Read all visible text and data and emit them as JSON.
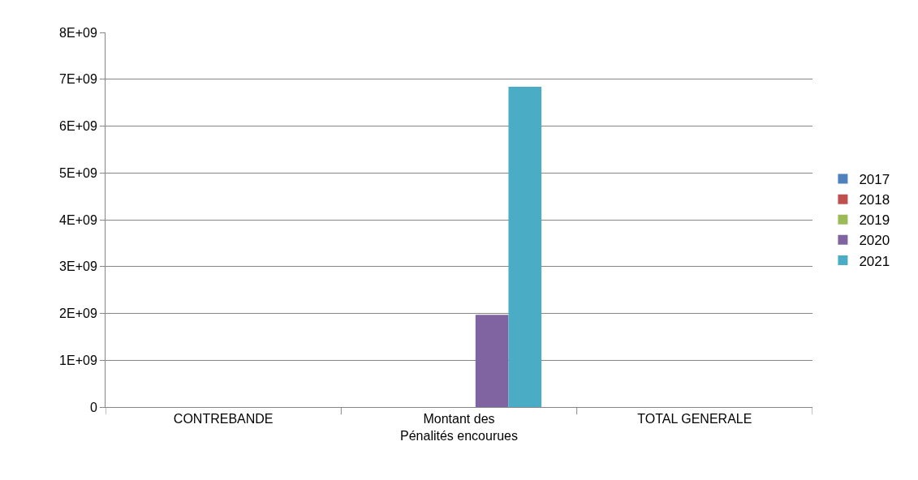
{
  "chart_data": {
    "type": "bar",
    "categories": [
      "CONTREBANDE",
      "Montant des Pénalités encourues",
      "TOTAL GENERALE"
    ],
    "series": [
      {
        "name": "2017",
        "color": "#4f81bd",
        "values": [
          0,
          0,
          0
        ]
      },
      {
        "name": "2018",
        "color": "#c0504d",
        "values": [
          0,
          0,
          0
        ]
      },
      {
        "name": "2019",
        "color": "#9bbb59",
        "values": [
          0,
          0,
          0
        ]
      },
      {
        "name": "2020",
        "color": "#8064a2",
        "values": [
          0,
          1970000000,
          0
        ]
      },
      {
        "name": "2021",
        "color": "#4bacc6",
        "values": [
          0,
          6840000000,
          0
        ]
      }
    ],
    "ylim": [
      0,
      8000000000
    ],
    "yticks": [
      0,
      {
        "value": 1000000000,
        "label": "1E+09"
      },
      {
        "value": 2000000000,
        "label": "2E+09"
      },
      {
        "value": 3000000000,
        "label": "3E+09"
      },
      {
        "value": 4000000000,
        "label": "4E+09"
      },
      {
        "value": 5000000000,
        "label": "5E+09"
      },
      {
        "value": 6000000000,
        "label": "6E+09"
      },
      {
        "value": 7000000000,
        "label": "7E+09"
      },
      {
        "value": 8000000000,
        "label": "8E+09"
      }
    ],
    "grid": "y",
    "legend": "right"
  }
}
